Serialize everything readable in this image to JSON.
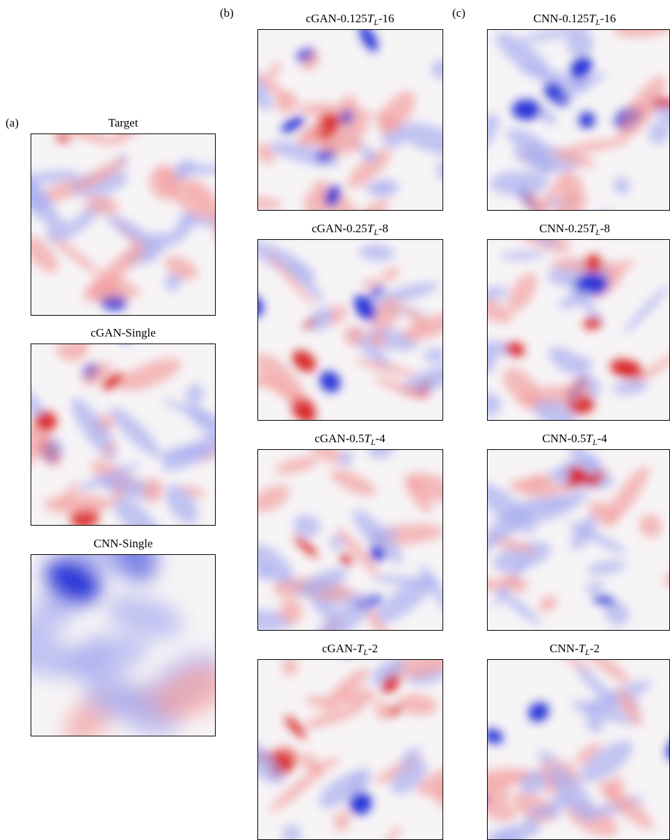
{
  "panels": {
    "a": {
      "label": "(a)",
      "items": [
        {
          "title": "Target"
        },
        {
          "title": "cGAN-Single"
        },
        {
          "title": "CNN-Single"
        }
      ]
    },
    "b": {
      "label": "(b)",
      "items": [
        {
          "title": {
            "pre": "cGAN-0.125",
            "sym": "T",
            "sub": "L",
            "post": "-16"
          }
        },
        {
          "title": {
            "pre": "cGAN-0.25",
            "sym": "T",
            "sub": "L",
            "post": "-8"
          }
        },
        {
          "title": {
            "pre": "cGAN-0.5",
            "sym": "T",
            "sub": "L",
            "post": "-4"
          }
        },
        {
          "title": {
            "pre": "cGAN-",
            "sym": "T",
            "sub": "L",
            "post": "-2"
          }
        }
      ]
    },
    "c": {
      "label": "(c)",
      "items": [
        {
          "title": {
            "pre": "CNN-0.125",
            "sym": "T",
            "sub": "L",
            "post": "-16"
          }
        },
        {
          "title": {
            "pre": "CNN-0.25",
            "sym": "T",
            "sub": "L",
            "post": "-8"
          }
        },
        {
          "title": {
            "pre": "CNN-0.5",
            "sym": "T",
            "sub": "L",
            "post": "-4"
          }
        },
        {
          "title": {
            "pre": "CNN-",
            "sym": "T",
            "sub": "L",
            "post": "-2"
          }
        }
      ]
    }
  }
}
